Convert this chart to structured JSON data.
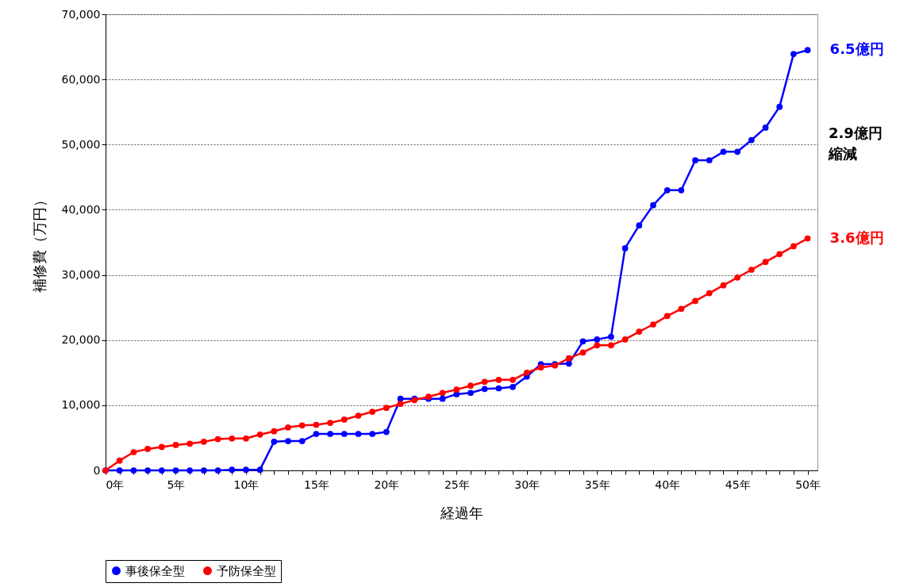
{
  "chart_data": {
    "type": "line",
    "xlabel": "経過年",
    "ylabel": "補修費（万円）",
    "x": [
      0,
      1,
      2,
      3,
      4,
      5,
      6,
      7,
      8,
      9,
      10,
      11,
      12,
      13,
      14,
      15,
      16,
      17,
      18,
      19,
      20,
      21,
      22,
      23,
      24,
      25,
      26,
      27,
      28,
      29,
      30,
      31,
      32,
      33,
      34,
      35,
      36,
      37,
      38,
      39,
      40,
      41,
      42,
      43,
      44,
      45,
      46,
      47,
      48,
      49,
      50
    ],
    "series": [
      {
        "name": "事後保全型",
        "color": "#0000ff",
        "values": [
          0,
          0,
          0,
          0,
          0,
          0,
          0,
          0,
          0,
          100,
          100,
          100,
          4400,
          4500,
          4500,
          5600,
          5600,
          5600,
          5600,
          5600,
          5900,
          11000,
          11000,
          11000,
          11000,
          11700,
          11900,
          12500,
          12600,
          12800,
          14400,
          16300,
          16300,
          16400,
          19800,
          20100,
          20500,
          34100,
          37600,
          40700,
          43000,
          43000,
          47600,
          47600,
          48900,
          48900,
          50700,
          52600,
          55800,
          63900,
          64500
        ]
      },
      {
        "name": "予防保全型",
        "color": "#ff0000",
        "values": [
          0,
          1500,
          2800,
          3300,
          3600,
          3900,
          4100,
          4400,
          4800,
          4900,
          4900,
          5500,
          6000,
          6600,
          6900,
          7000,
          7300,
          7800,
          8400,
          9000,
          9600,
          10200,
          10800,
          11300,
          11900,
          12400,
          13000,
          13600,
          13900,
          13900,
          15000,
          15800,
          16100,
          17200,
          18100,
          19200,
          19200,
          20100,
          21300,
          22400,
          23700,
          24800,
          26000,
          27200,
          28400,
          29600,
          30800,
          32000,
          33200,
          34400,
          35600
        ]
      }
    ],
    "xlim": [
      0,
      50.7
    ],
    "xticks": [
      {
        "value": 0,
        "label": "0年"
      },
      {
        "value": 1,
        "label": null
      },
      {
        "value": 2,
        "label": null
      },
      {
        "value": 3,
        "label": null
      },
      {
        "value": 4,
        "label": null
      },
      {
        "value": 5,
        "label": "5年"
      },
      {
        "value": 6,
        "label": null
      },
      {
        "value": 7,
        "label": null
      },
      {
        "value": 8,
        "label": null
      },
      {
        "value": 9,
        "label": null
      },
      {
        "value": 10,
        "label": "10年"
      },
      {
        "value": 11,
        "label": null
      },
      {
        "value": 12,
        "label": null
      },
      {
        "value": 13,
        "label": null
      },
      {
        "value": 14,
        "label": null
      },
      {
        "value": 15,
        "label": "15年"
      },
      {
        "value": 16,
        "label": null
      },
      {
        "value": 17,
        "label": null
      },
      {
        "value": 18,
        "label": null
      },
      {
        "value": 19,
        "label": null
      },
      {
        "value": 20,
        "label": "20年"
      },
      {
        "value": 21,
        "label": null
      },
      {
        "value": 22,
        "label": null
      },
      {
        "value": 23,
        "label": null
      },
      {
        "value": 24,
        "label": null
      },
      {
        "value": 25,
        "label": "25年"
      },
      {
        "value": 26,
        "label": null
      },
      {
        "value": 27,
        "label": null
      },
      {
        "value": 28,
        "label": null
      },
      {
        "value": 29,
        "label": null
      },
      {
        "value": 30,
        "label": "30年"
      },
      {
        "value": 31,
        "label": null
      },
      {
        "value": 32,
        "label": null
      },
      {
        "value": 33,
        "label": null
      },
      {
        "value": 34,
        "label": null
      },
      {
        "value": 35,
        "label": "35年"
      },
      {
        "value": 36,
        "label": null
      },
      {
        "value": 37,
        "label": null
      },
      {
        "value": 38,
        "label": null
      },
      {
        "value": 39,
        "label": null
      },
      {
        "value": 40,
        "label": "40年"
      },
      {
        "value": 41,
        "label": null
      },
      {
        "value": 42,
        "label": null
      },
      {
        "value": 43,
        "label": null
      },
      {
        "value": 44,
        "label": null
      },
      {
        "value": 45,
        "label": "45年"
      },
      {
        "value": 46,
        "label": null
      },
      {
        "value": 47,
        "label": null
      },
      {
        "value": 48,
        "label": null
      },
      {
        "value": 49,
        "label": null
      },
      {
        "value": 50,
        "label": "50年"
      }
    ],
    "ylim": [
      0,
      70000
    ],
    "yticks": [
      0,
      {
        "value": 10000,
        "label": "10,000"
      },
      {
        "value": 20000,
        "label": "20,000"
      },
      {
        "value": 30000,
        "label": "30,000"
      },
      {
        "value": 40000,
        "label": "40,000"
      },
      {
        "value": 50000,
        "label": "50,000"
      },
      {
        "value": 60000,
        "label": "60,000"
      },
      {
        "value": 70000,
        "label": "70,000"
      }
    ],
    "grid": "y",
    "legend": "bottom",
    "marker": "circle",
    "line_style": "solid",
    "annotations": [
      {
        "text": "6.5億円",
        "x": 50,
        "y": 64500
      },
      "2.9億円",
      "縮減",
      {
        "text": "3.6億円",
        "x": 50,
        "y": 35600
      }
    ]
  }
}
